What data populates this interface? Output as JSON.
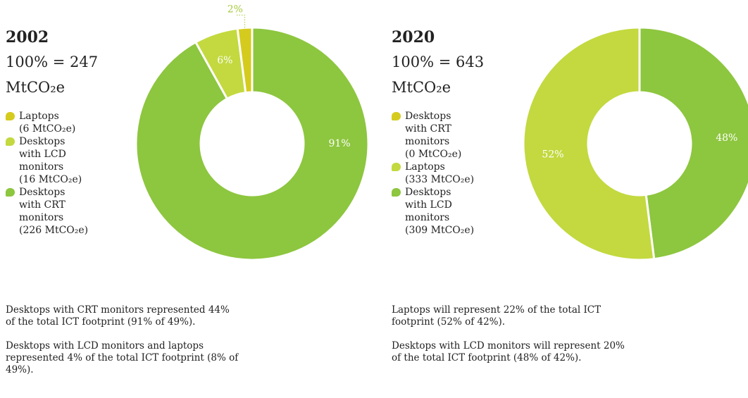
{
  "chart_data": [
    {
      "type": "donut",
      "title": "2002",
      "subtitle": "100% = 247",
      "unit": "MtCO₂e",
      "categories": [
        "Laptops",
        "Desktops with LCD monitors",
        "Desktops with CRT monitors"
      ],
      "amounts": [
        6,
        16,
        226
      ],
      "amount_labels": [
        "(6 MtCO₂e)",
        "(16 MtCO₂e)",
        "(226 MtCO₂e)"
      ],
      "values": [
        2,
        6,
        91
      ],
      "value_labels": [
        "2%",
        "6%",
        "91%"
      ],
      "colors": [
        "#d5cb1e",
        "#c3d93f",
        "#8dc63f"
      ],
      "notes": [
        "Desktops with CRT monitors represented 44% of the total ICT footprint (91% of 49%).",
        "Desktops with LCD monitors and laptops represented 4% of the total ICT footprint (8% of 49%)."
      ]
    },
    {
      "type": "donut",
      "title": "2020",
      "subtitle": "100% = 643",
      "unit": "MtCO₂e",
      "categories": [
        "Desktops with CRT monitors",
        "Laptops",
        "Desktops with LCD monitors"
      ],
      "amounts": [
        0,
        333,
        309
      ],
      "amount_labels": [
        "(0 MtCO₂e)",
        "(333 MtCO₂e)",
        "(309 MtCO₂e)"
      ],
      "values": [
        0,
        52,
        48
      ],
      "value_labels": [
        null,
        "52%",
        "48%"
      ],
      "colors": [
        "#d5cb1e",
        "#c3d93f",
        "#8dc63f"
      ],
      "notes": [
        "Laptops will represent 22% of the total ICT footprint (52% of 42%).",
        "Desktops with LCD monitors will represent 20% of the total ICT footprint (48% of 42%)."
      ]
    }
  ]
}
